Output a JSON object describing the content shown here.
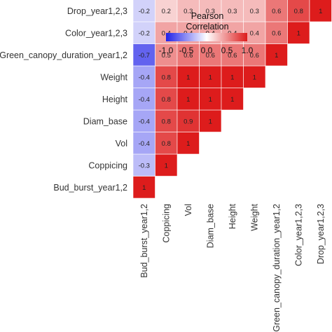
{
  "chart_data": {
    "type": "heatmap",
    "subtype": "lower-triangle correlation matrix",
    "variables": [
      "Bud_burst_year1,2",
      "Coppicing",
      "Vol",
      "Diam_base",
      "Height",
      "Weight",
      "Green_canopy_duration_year1,2",
      "Color_year1,2,3",
      "Drop_year1,2,3"
    ],
    "row_values": [
      [
        1
      ],
      [
        -0.3,
        1
      ],
      [
        -0.4,
        0.8,
        1
      ],
      [
        -0.4,
        0.8,
        0.9,
        1
      ],
      [
        -0.4,
        0.8,
        1,
        1,
        1
      ],
      [
        -0.4,
        0.8,
        1,
        1,
        1,
        1
      ],
      [
        -0.7,
        0.5,
        0.6,
        0.6,
        0.6,
        0.6,
        1
      ],
      [
        -0.2,
        0.4,
        0.4,
        0.4,
        0.4,
        0.4,
        0.6,
        1
      ],
      [
        -0.2,
        0.2,
        0.3,
        0.3,
        0.3,
        0.3,
        0.6,
        0.8,
        1
      ]
    ],
    "legend": {
      "title_lines": [
        "Pearson",
        "Correlation"
      ],
      "range": [
        -1,
        1
      ],
      "ticks": [
        "-1.0",
        "-0.5",
        "0.0",
        "0.5",
        "1.0"
      ],
      "colors": {
        "low": "#2020e8",
        "mid": "#ffffff",
        "high": "#dd1c1c"
      },
      "placement": "top-center"
    }
  }
}
